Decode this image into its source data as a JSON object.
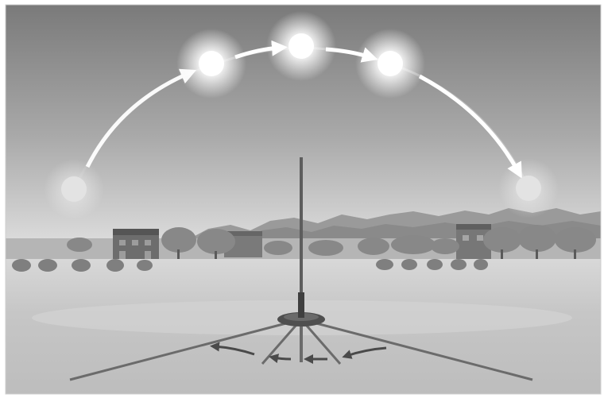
{
  "diagram": {
    "subject": "sun-path-and-shadow-stick",
    "sun_positions": [
      {
        "id": "sunrise",
        "brightness": "dim"
      },
      {
        "id": "morning",
        "brightness": "bright"
      },
      {
        "id": "noon",
        "brightness": "bright"
      },
      {
        "id": "afternoon",
        "brightness": "bright"
      },
      {
        "id": "sunset",
        "brightness": "dim"
      }
    ],
    "sun_path_arrows": 4,
    "shadows": [
      {
        "id": "shadow-1",
        "length": "long"
      },
      {
        "id": "shadow-2",
        "length": "short"
      },
      {
        "id": "shadow-3",
        "length": "shortest"
      },
      {
        "id": "shadow-4",
        "length": "short"
      },
      {
        "id": "shadow-5",
        "length": "long"
      }
    ],
    "shadow_motion_arrows": 4,
    "colors": {
      "sky_top": "#7d7d7d",
      "sky_horizon": "#d9d9d9",
      "ground": "#c9c9c9",
      "sun_bright": "#ffffff",
      "sun_dim": "#e2e2e2",
      "stick": "#555555",
      "shadow": "#6b6b6b",
      "arrow": "#4a4a4a"
    }
  }
}
